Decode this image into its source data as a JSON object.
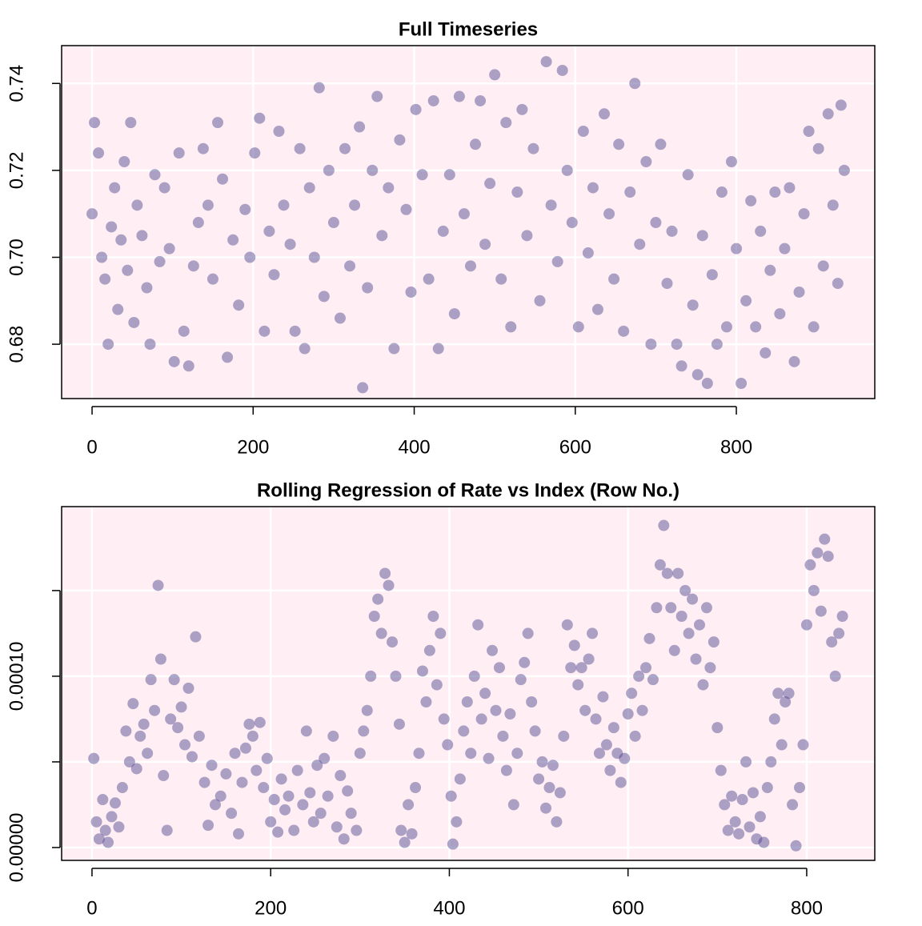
{
  "chart_data": [
    {
      "type": "scatter",
      "title": "Full Timeseries",
      "color": "#483D8B",
      "alpha": 0.45,
      "background": "#FFEEF3",
      "grid": true,
      "xlim": [
        -37.8,
        971.9
      ],
      "ylim": [
        0.6675,
        0.7487
      ],
      "xticks": [
        0,
        200,
        400,
        600,
        800
      ],
      "yticks": [
        0.68,
        {
          "value": 0.7,
          "label": "0.70"
        },
        0.72,
        0.74
      ],
      "x": [
        0,
        3,
        8,
        12,
        16,
        20,
        24,
        28,
        32,
        36,
        40,
        44,
        48,
        52,
        56,
        62,
        68,
        72,
        78,
        84,
        90,
        96,
        102,
        108,
        114,
        120,
        126,
        132,
        138,
        144,
        150,
        156,
        162,
        168,
        175,
        182,
        190,
        196,
        202,
        208,
        214,
        220,
        226,
        232,
        238,
        246,
        252,
        258,
        264,
        270,
        276,
        282,
        288,
        294,
        300,
        308,
        314,
        320,
        326,
        332,
        336,
        342,
        348,
        354,
        360,
        368,
        375,
        382,
        390,
        396,
        402,
        410,
        418,
        424,
        430,
        436,
        444,
        450,
        456,
        462,
        470,
        476,
        482,
        488,
        494,
        500,
        508,
        514,
        520,
        528,
        534,
        540,
        548,
        556,
        564,
        570,
        578,
        584,
        590,
        596,
        604,
        610,
        616,
        622,
        628,
        636,
        642,
        648,
        654,
        660,
        668,
        674,
        680,
        688,
        694,
        700,
        706,
        714,
        720,
        726,
        732,
        740,
        746,
        752,
        758,
        764,
        770,
        776,
        782,
        788,
        794,
        800,
        806,
        812,
        818,
        824,
        830,
        836,
        842,
        848,
        854,
        860,
        866,
        872,
        878,
        884,
        890,
        896,
        902,
        908,
        914,
        920,
        926,
        930,
        934
      ],
      "y": [
        0.71,
        0.731,
        0.724,
        0.7,
        0.695,
        0.68,
        0.707,
        0.716,
        0.688,
        0.704,
        0.722,
        0.697,
        0.731,
        0.685,
        0.712,
        0.705,
        0.693,
        0.68,
        0.719,
        0.699,
        0.716,
        0.702,
        0.676,
        0.724,
        0.683,
        0.675,
        0.698,
        0.708,
        0.725,
        0.712,
        0.695,
        0.731,
        0.718,
        0.677,
        0.704,
        0.689,
        0.711,
        0.7,
        0.724,
        0.732,
        0.683,
        0.706,
        0.696,
        0.729,
        0.712,
        0.703,
        0.683,
        0.725,
        0.679,
        0.716,
        0.7,
        0.739,
        0.691,
        0.72,
        0.708,
        0.686,
        0.725,
        0.698,
        0.712,
        0.73,
        0.67,
        0.693,
        0.72,
        0.737,
        0.705,
        0.716,
        0.679,
        0.727,
        0.711,
        0.692,
        0.734,
        0.719,
        0.695,
        0.736,
        0.679,
        0.706,
        0.719,
        0.687,
        0.737,
        0.71,
        0.698,
        0.726,
        0.736,
        0.703,
        0.717,
        0.742,
        0.695,
        0.731,
        0.684,
        0.715,
        0.734,
        0.705,
        0.725,
        0.69,
        0.745,
        0.712,
        0.699,
        0.743,
        0.72,
        0.708,
        0.684,
        0.729,
        0.701,
        0.716,
        0.688,
        0.733,
        0.71,
        0.695,
        0.726,
        0.683,
        0.715,
        0.74,
        0.703,
        0.722,
        0.68,
        0.708,
        0.726,
        0.694,
        0.706,
        0.68,
        0.675,
        0.719,
        0.689,
        0.673,
        0.705,
        0.671,
        0.696,
        0.68,
        0.715,
        0.684,
        0.722,
        0.702,
        0.671,
        0.69,
        0.713,
        0.684,
        0.706,
        0.678,
        0.697,
        0.715,
        0.687,
        0.702,
        0.716,
        0.676,
        0.692,
        0.71,
        0.729,
        0.684,
        0.725,
        0.698,
        0.733,
        0.712,
        0.694,
        0.735,
        0.72
      ]
    },
    {
      "type": "scatter",
      "title": "Rolling Regression of Rate vs Index (Row No.)",
      "color": "#483D8B",
      "alpha": 0.45,
      "background": "#FFEEF3",
      "grid": true,
      "xlim": [
        -34.0,
        876.2
      ],
      "ylim": [
        -7.5e-06,
        0.000199
      ],
      "xticks": [
        0,
        200,
        400,
        600,
        800
      ],
      "yticks": [
        {
          "value": 0,
          "label": "0.00000"
        },
        {
          "value": 5e-05,
          "label": null
        },
        {
          "value": 0.0001,
          "label": "0.00010"
        },
        {
          "value": 0.00015,
          "label": null
        }
      ],
      "x": [
        2,
        5,
        8,
        12,
        15,
        18,
        22,
        26,
        30,
        34,
        38,
        42,
        46,
        50,
        54,
        58,
        62,
        66,
        70,
        74,
        77,
        80,
        84,
        88,
        92,
        96,
        100,
        104,
        108,
        112,
        116,
        120,
        126,
        130,
        134,
        138,
        144,
        150,
        156,
        160,
        164,
        168,
        172,
        176,
        180,
        184,
        188,
        192,
        196,
        200,
        204,
        208,
        212,
        216,
        220,
        226,
        230,
        236,
        240,
        244,
        248,
        252,
        256,
        260,
        264,
        270,
        274,
        278,
        282,
        286,
        290,
        296,
        300,
        304,
        308,
        312,
        316,
        320,
        324,
        328,
        332,
        336,
        340,
        344,
        346,
        350,
        354,
        358,
        362,
        366,
        370,
        374,
        378,
        382,
        386,
        390,
        394,
        398,
        402,
        404,
        408,
        412,
        416,
        420,
        424,
        428,
        432,
        436,
        440,
        444,
        448,
        452,
        456,
        460,
        464,
        468,
        472,
        476,
        480,
        484,
        488,
        492,
        496,
        500,
        504,
        508,
        512,
        516,
        520,
        524,
        528,
        532,
        536,
        540,
        544,
        548,
        552,
        556,
        560,
        564,
        568,
        572,
        576,
        580,
        584,
        588,
        592,
        596,
        600,
        604,
        608,
        612,
        616,
        620,
        624,
        628,
        632,
        636,
        640,
        644,
        648,
        652,
        656,
        660,
        664,
        668,
        672,
        676,
        680,
        684,
        688,
        692,
        696,
        700,
        704,
        708,
        712,
        716,
        720,
        724,
        728,
        732,
        736,
        740,
        744,
        748,
        752,
        756,
        760,
        764,
        768,
        772,
        776,
        780,
        784,
        788,
        792,
        796,
        800,
        804,
        808,
        812,
        816,
        820,
        824,
        828,
        832,
        836,
        840
      ],
      "y": [
        5.2e-05,
        1.5e-05,
        5e-06,
        2.8e-05,
        1e-05,
        3e-06,
        1.8e-05,
        2.6e-05,
        1.2e-05,
        3.5e-05,
        6.8e-05,
        5e-05,
        8.4e-05,
        4.6e-05,
        6.5e-05,
        7.2e-05,
        5.5e-05,
        9.8e-05,
        8e-05,
        0.000153,
        0.00011,
        4.2e-05,
        1e-05,
        7.5e-05,
        9.8e-05,
        7e-05,
        8.2e-05,
        6e-05,
        9.3e-05,
        5.3e-05,
        0.000123,
        6.5e-05,
        3.8e-05,
        1.3e-05,
        4.8e-05,
        2.5e-05,
        3e-05,
        4.3e-05,
        2e-05,
        5.5e-05,
        8e-06,
        3.8e-05,
        5.8e-05,
        7.2e-05,
        6.5e-05,
        4.5e-05,
        7.3e-05,
        3.5e-05,
        5.2e-05,
        1.5e-05,
        2.8e-05,
        9e-06,
        4e-05,
        2.2e-05,
        3e-05,
        1e-05,
        4.5e-05,
        2.5e-05,
        6.8e-05,
        3.2e-05,
        1.5e-05,
        4.8e-05,
        2e-05,
        5.2e-05,
        3e-05,
        6.5e-05,
        1.2e-05,
        4.2e-05,
        5e-06,
        3.3e-05,
        2e-05,
        1e-05,
        5.5e-05,
        6.8e-05,
        8e-05,
        0.0001,
        0.000135,
        0.000145,
        0.000125,
        0.00016,
        0.000153,
        0.00012,
        0.0001,
        7.2e-05,
        1e-05,
        3e-06,
        2.5e-05,
        8e-06,
        3.5e-05,
        5.5e-05,
        0.000103,
        8.5e-05,
        0.000115,
        0.000135,
        9.5e-05,
        0.000125,
        7.5e-05,
        6e-05,
        3e-05,
        2e-06,
        1.5e-05,
        4e-05,
        6.8e-05,
        8.5e-05,
        5.5e-05,
        0.0001,
        0.00013,
        7.5e-05,
        9e-05,
        5.2e-05,
        0.000115,
        8e-05,
        0.000105,
        6.5e-05,
        4.5e-05,
        7.8e-05,
        2.5e-05,
        5.5e-05,
        9.8e-05,
        0.000108,
        0.000125,
        8.5e-05,
        6.8e-05,
        4e-05,
        5e-05,
        2.3e-05,
        3.5e-05,
        4.8e-05,
        1.5e-05,
        3.2e-05,
        6.5e-05,
        0.00013,
        0.000105,
        0.000118,
        9.5e-05,
        0.000105,
        8e-05,
        0.00011,
        0.000125,
        7.5e-05,
        5.5e-05,
        8.8e-05,
        6e-05,
        4.5e-05,
        7e-05,
        5.5e-05,
        3.8e-05,
        5.2e-05,
        7.8e-05,
        9e-05,
        6.5e-05,
        0.0001,
        8e-05,
        0.000105,
        0.000122,
        9.8e-05,
        0.00014,
        0.000165,
        0.000188,
        0.00016,
        0.00014,
        0.000115,
        0.00016,
        0.000135,
        0.00015,
        0.000125,
        0.000145,
        0.00011,
        0.00013,
        9.5e-05,
        0.00014,
        0.000105,
        0.00012,
        7e-05,
        4.5e-05,
        2.5e-05,
        1e-05,
        3e-05,
        1.5e-05,
        8e-06,
        2.8e-05,
        5e-05,
        1.2e-05,
        3.2e-05,
        5e-06,
        1.8e-05,
        3e-06,
        3.5e-05,
        5e-05,
        7.5e-05,
        9e-05,
        6e-05,
        8.5e-05,
        9e-05,
        2.5e-05,
        1e-06,
        3.5e-05,
        6e-05,
        0.00013,
        0.000165,
        0.00015,
        0.000172,
        0.000138,
        0.00018,
        0.00017,
        0.00012,
        0.0001,
        0.000125,
        0.000135
      ]
    }
  ]
}
